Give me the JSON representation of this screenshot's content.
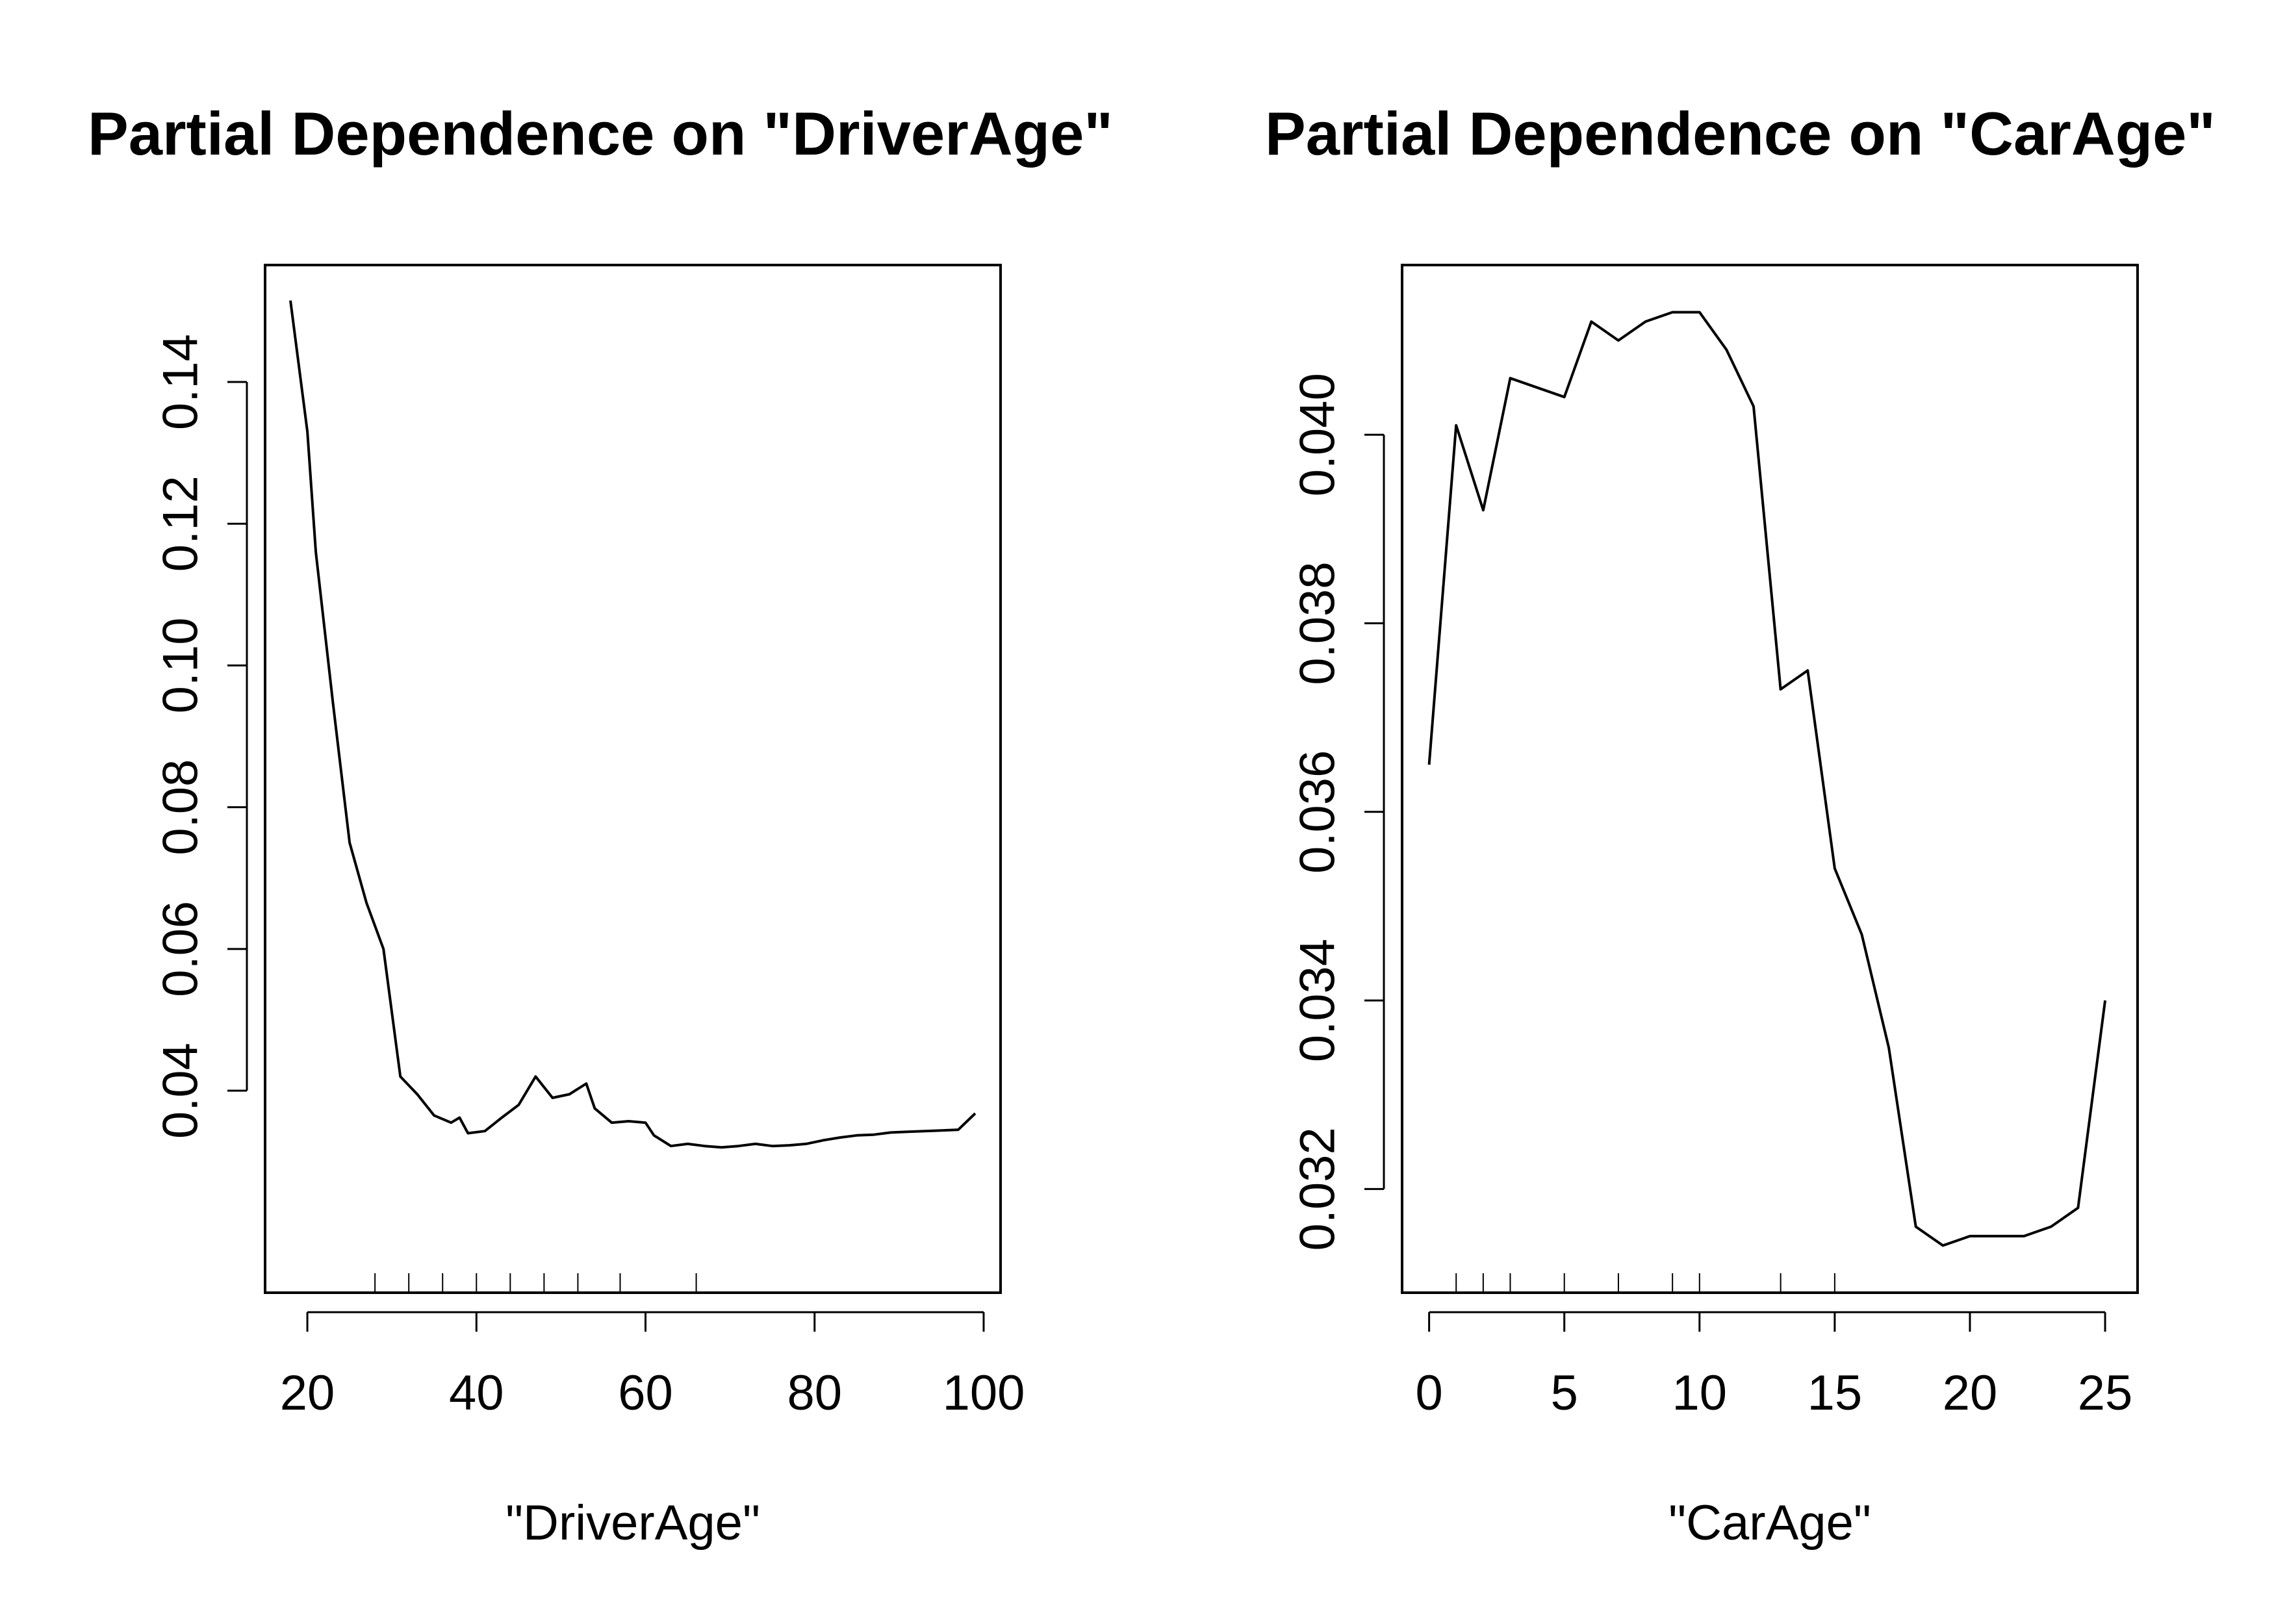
{
  "chart_data": [
    {
      "type": "line",
      "title": "Partial Dependence on \"DriverAge\"",
      "xlabel": "\"DriverAge\"",
      "ylabel": "",
      "xlim": [
        15,
        102
      ],
      "ylim": [
        0.0115,
        0.1565
      ],
      "xticks": [
        20,
        40,
        60,
        80,
        100
      ],
      "xtick_labels": [
        "20",
        "40",
        "60",
        "80",
        "100"
      ],
      "yticks": [
        0.04,
        0.06,
        0.08,
        0.1,
        0.12,
        0.14
      ],
      "ytick_labels": [
        "0.04",
        "0.06",
        "0.08",
        "0.10",
        "0.12",
        "0.14"
      ],
      "grid": false,
      "rug": [
        28,
        32,
        36,
        40,
        44,
        48,
        52,
        57,
        66
      ],
      "x": [
        18,
        20,
        21,
        23,
        25,
        27,
        29,
        31,
        33,
        35,
        37,
        38,
        39,
        41,
        43,
        45,
        47,
        49,
        51,
        53,
        54,
        56,
        58,
        60,
        61,
        63,
        65,
        67,
        69,
        71,
        73,
        75,
        77,
        79,
        81,
        83,
        85,
        87,
        89,
        91,
        93,
        95,
        97,
        99
      ],
      "y": [
        0.1515,
        0.133,
        0.116,
        0.095,
        0.075,
        0.0665,
        0.06,
        0.042,
        0.0395,
        0.0365,
        0.0355,
        0.0362,
        0.034,
        0.0343,
        0.0362,
        0.038,
        0.042,
        0.039,
        0.0395,
        0.041,
        0.0375,
        0.0355,
        0.0357,
        0.0355,
        0.0337,
        0.0322,
        0.0325,
        0.0322,
        0.032,
        0.0322,
        0.0325,
        0.0322,
        0.0323,
        0.0325,
        0.033,
        0.0334,
        0.0337,
        0.0338,
        0.0341,
        0.0342,
        0.0343,
        0.0344,
        0.0345,
        0.0368
      ]
    },
    {
      "type": "line",
      "title": "Partial Dependence on \"CarAge\"",
      "xlabel": "\"CarAge\"",
      "ylabel": "",
      "xlim": [
        -1,
        26.2
      ],
      "ylim": [
        0.0309,
        0.0418
      ],
      "xticks": [
        0,
        5,
        10,
        15,
        20,
        25
      ],
      "xtick_labels": [
        "0",
        "5",
        "10",
        "15",
        "20",
        "25"
      ],
      "yticks": [
        0.032,
        0.034,
        0.036,
        0.038,
        0.04
      ],
      "ytick_labels": [
        "0.032",
        "0.034",
        "0.036",
        "0.038",
        "0.040"
      ],
      "grid": false,
      "rug": [
        1,
        2,
        3,
        5,
        7,
        9,
        10,
        13,
        15
      ],
      "x": [
        0,
        1,
        2,
        3,
        4,
        5,
        6,
        7,
        8,
        9,
        10,
        11,
        12,
        13,
        14,
        15,
        16,
        17,
        18,
        19,
        20,
        21,
        22,
        23,
        24,
        25
      ],
      "y": [
        0.0365,
        0.0401,
        0.0392,
        0.0406,
        0.0405,
        0.0404,
        0.0412,
        0.041,
        0.0412,
        0.0413,
        0.0413,
        0.0409,
        0.0403,
        0.0373,
        0.0375,
        0.0354,
        0.0347,
        0.0335,
        0.0316,
        0.0314,
        0.0315,
        0.0315,
        0.0315,
        0.0316,
        0.0318,
        0.034
      ]
    }
  ]
}
